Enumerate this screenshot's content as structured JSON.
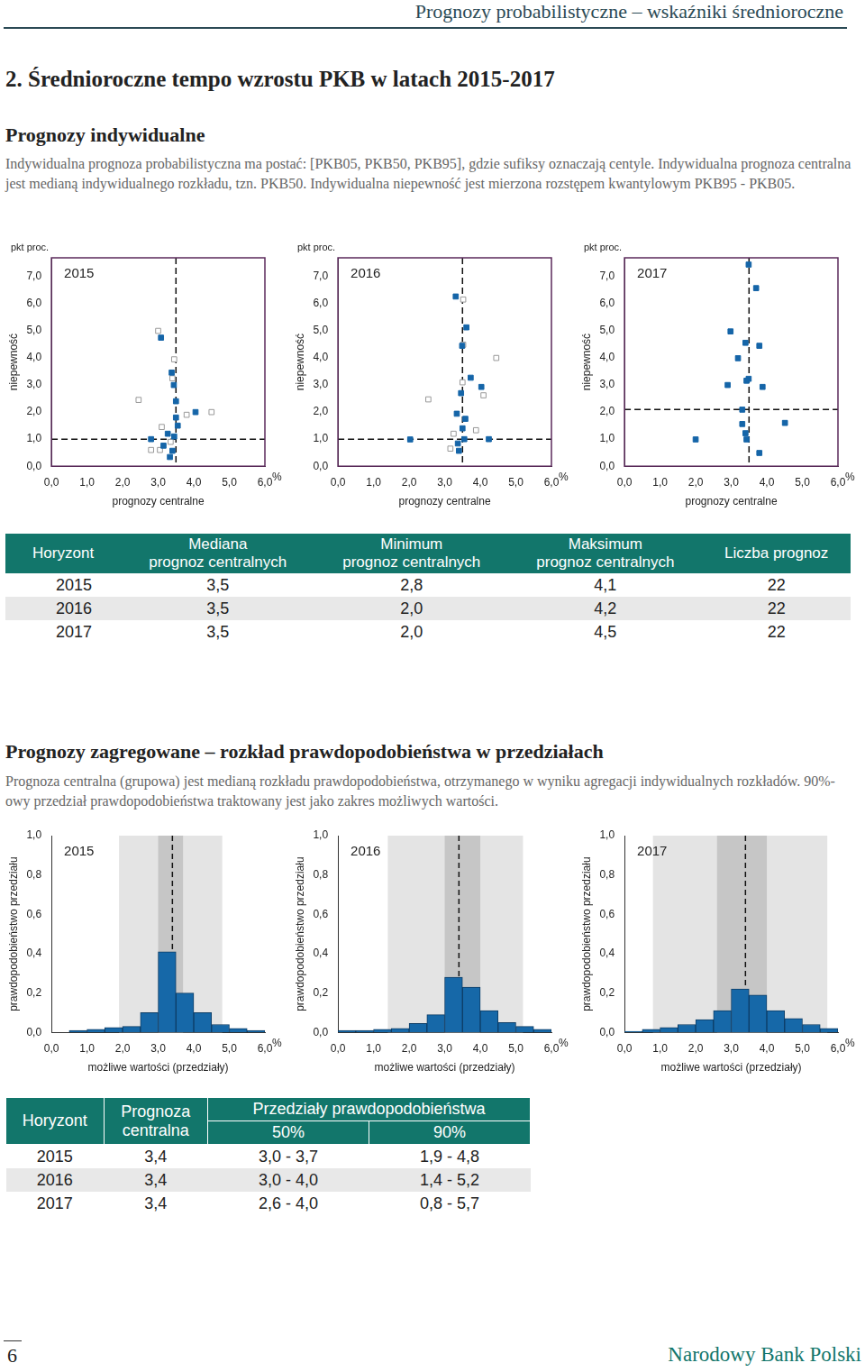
{
  "page": {
    "running_header": "Prognozy probabilistyczne – wskaźniki średnioroczne",
    "section_title": "2. Średnioroczne tempo wzrostu PKB w latach 2015-2017",
    "individual": {
      "heading": "Prognozy indywidualne",
      "text": "Indywidualna prognoza probabilistyczna ma postać: [PKB05, PKB50, PKB95], gdzie sufiksy oznaczają centyle. Indywidualna prognoza centralna jest medianą indywidualnego rozkładu, tzn. PKB50. Indywidualna niepewność jest mierzona rozstępem kwantylowym PKB95 - PKB05."
    },
    "table1": {
      "columns": [
        "Horyzont",
        "Mediana\nprognoz centralnych",
        "Minimum\nprognoz centralnych",
        "Maksimum\nprognoz centralnych",
        "Liczba prognoz"
      ],
      "rows": [
        [
          "2015",
          "3,5",
          "2,8",
          "4,1",
          "22"
        ],
        [
          "2016",
          "3,5",
          "2,0",
          "4,2",
          "22"
        ],
        [
          "2017",
          "3,5",
          "2,0",
          "4,5",
          "22"
        ]
      ]
    },
    "aggregate": {
      "heading": "Prognozy zagregowane – rozkład prawdopodobieństwa w przedziałach",
      "text": "Prognoza centralna (grupowa) jest medianą rozkładu prawdopodobieństwa, otrzymanego w wyniku agregacji indywidualnych rozkładów. 90%-owy przedział prawdopodobieństwa traktowany jest jako zakres możliwych wartości."
    },
    "table2": {
      "header_top": [
        "Horyzont",
        "Prognoza\ncentralna",
        "Przedziały prawdopodobieństwa"
      ],
      "header_sub": [
        "50%",
        "90%"
      ],
      "rows": [
        [
          "2015",
          "3,4",
          "3,0 - 3,7",
          "1,9 - 4,8"
        ],
        [
          "2016",
          "3,4",
          "3,0 - 4,0",
          "1,4 - 5,2"
        ],
        [
          "2017",
          "3,4",
          "2,6 - 4,0",
          "0,8 - 5,7"
        ]
      ]
    },
    "footer": {
      "page": "6",
      "publisher": "Narodowy Bank Polski"
    }
  },
  "chart_data": [
    {
      "type": "scatter",
      "title": "2015",
      "x_label": "prognozy centralne",
      "y_label": "niepewność",
      "x_unit": "%",
      "y_unit": "pkt proc.",
      "xlim": [
        0,
        6
      ],
      "ylim": [
        0,
        7.7
      ],
      "xticks": [
        {
          "value": 0,
          "label": "0,0"
        },
        {
          "value": 1,
          "label": "1,0"
        },
        {
          "value": 2,
          "label": "2,0"
        },
        {
          "value": 3,
          "label": "3,0"
        },
        {
          "value": 4,
          "label": "4,0"
        },
        {
          "value": 5,
          "label": "5,0"
        },
        {
          "value": 6,
          "label": "6,0"
        }
      ],
      "yticks": [
        {
          "value": 0,
          "label": "0,0"
        },
        {
          "value": 1,
          "label": "1,0"
        },
        {
          "value": 2,
          "label": "2,0"
        },
        {
          "value": 3,
          "label": "3,0"
        },
        {
          "value": 4,
          "label": "4,0"
        },
        {
          "value": 5,
          "label": "5,0"
        },
        {
          "value": 6,
          "label": "6,0"
        },
        {
          "value": 7,
          "label": "7,0"
        }
      ],
      "grid": false,
      "median_x": 3.5,
      "median_y": 1.0,
      "series": [
        {
          "color": "#1565a8",
          "marker": "square",
          "x": [
            3.08,
            3.38,
            3.44,
            3.5,
            3.5,
            4.05,
            2.8,
            3.15,
            3.4,
            3.55,
            3.27,
            3.45,
            3.33
          ],
          "values": [
            4.75,
            3.46,
            3.0,
            2.4,
            1.8,
            2.0,
            1.0,
            0.76,
            0.57,
            1.5,
            1.2,
            1.1,
            0.34
          ]
        },
        {
          "color": "#999999",
          "marker": "square_open",
          "x": [
            3.0,
            3.45,
            2.45,
            3.4,
            4.5,
            3.1,
            3.05,
            3.8,
            2.8,
            3.35
          ],
          "values": [
            5.0,
            3.95,
            2.45,
            3.25,
            2.0,
            1.45,
            0.6,
            1.9,
            0.6,
            0.9
          ]
        }
      ]
    },
    {
      "type": "scatter",
      "title": "2016",
      "x_label": "prognozy centralne",
      "y_label": "niepewność",
      "x_unit": "%",
      "y_unit": "pkt proc.",
      "xlim": [
        0,
        6
      ],
      "ylim": [
        0,
        7.7
      ],
      "xticks": [
        {
          "value": 0,
          "label": "0,0"
        },
        {
          "value": 1,
          "label": "1,0"
        },
        {
          "value": 2,
          "label": "2,0"
        },
        {
          "value": 3,
          "label": "3,0"
        },
        {
          "value": 4,
          "label": "4,0"
        },
        {
          "value": 5,
          "label": "5,0"
        },
        {
          "value": 6,
          "label": "6,0"
        }
      ],
      "yticks": [
        {
          "value": 0,
          "label": "0,0"
        },
        {
          "value": 1,
          "label": "1,0"
        },
        {
          "value": 2,
          "label": "2,0"
        },
        {
          "value": 3,
          "label": "3,0"
        },
        {
          "value": 4,
          "label": "4,0"
        },
        {
          "value": 5,
          "label": "5,0"
        },
        {
          "value": 6,
          "label": "6,0"
        },
        {
          "value": 7,
          "label": "7,0"
        }
      ],
      "grid": false,
      "median_x": 3.5,
      "median_y": 1.0,
      "series": [
        {
          "color": "#1565a8",
          "marker": "square",
          "x": [
            3.31,
            3.61,
            3.49,
            3.73,
            4.03,
            3.46,
            3.34,
            3.58,
            2.03,
            3.55,
            3.37,
            3.4,
            4.24,
            3.5
          ],
          "values": [
            6.27,
            5.13,
            4.45,
            3.27,
            2.93,
            2.7,
            1.94,
            1.75,
            0.99,
            1.0,
            0.84,
            0.57,
            1.0,
            1.4
          ]
        },
        {
          "color": "#999999",
          "marker": "square_open",
          "x": [
            3.52,
            3.52,
            4.45,
            2.54,
            4.09,
            3.5,
            3.88,
            3.25,
            3.16
          ],
          "values": [
            6.16,
            4.49,
            4.0,
            2.47,
            2.62,
            3.1,
            1.33,
            1.2,
            0.65
          ]
        }
      ]
    },
    {
      "type": "scatter",
      "title": "2017",
      "x_label": "prognozy centralne",
      "y_label": "niepewność",
      "x_unit": "%",
      "y_unit": "pkt proc.",
      "xlim": [
        0,
        6
      ],
      "ylim": [
        0,
        7.7
      ],
      "xticks": [
        {
          "value": 0,
          "label": "0,0"
        },
        {
          "value": 1,
          "label": "1,0"
        },
        {
          "value": 2,
          "label": "2,0"
        },
        {
          "value": 3,
          "label": "3,0"
        },
        {
          "value": 4,
          "label": "4,0"
        },
        {
          "value": 5,
          "label": "5,0"
        },
        {
          "value": 6,
          "label": "6,0"
        }
      ],
      "yticks": [
        {
          "value": 0,
          "label": "0,0"
        },
        {
          "value": 1,
          "label": "1,0"
        },
        {
          "value": 2,
          "label": "2,0"
        },
        {
          "value": 3,
          "label": "3,0"
        },
        {
          "value": 4,
          "label": "4,0"
        },
        {
          "value": 5,
          "label": "5,0"
        },
        {
          "value": 6,
          "label": "6,0"
        },
        {
          "value": 7,
          "label": "7,0"
        }
      ],
      "grid": false,
      "median_x": 3.5,
      "median_y": 2.1,
      "series": [
        {
          "color": "#1565a8",
          "marker": "square",
          "x": [
            3.49,
            3.7,
            2.98,
            3.79,
            3.19,
            3.4,
            3.49,
            2.9,
            3.43,
            3.88,
            3.31,
            3.31,
            4.51,
            2.0,
            3.43,
            3.79,
            3.4
          ],
          "values": [
            7.45,
            6.58,
            4.98,
            4.45,
            3.99,
            4.56,
            3.23,
            3.0,
            3.16,
            2.93,
            2.09,
            1.56,
            1.6,
            0.99,
            0.99,
            0.49,
            1.22
          ]
        }
      ]
    },
    {
      "type": "histogram",
      "title": "2015",
      "x_label": "możliwe wartości (przedziały)",
      "y_label": "prawdopodobieństwo przedziału",
      "x_unit": "%",
      "xlim": [
        0,
        6
      ],
      "ylim": [
        0,
        1
      ],
      "xticks": [
        {
          "value": 0,
          "label": "0,0"
        },
        {
          "value": 1,
          "label": "1,0"
        },
        {
          "value": 2,
          "label": "2,0"
        },
        {
          "value": 3,
          "label": "3,0"
        },
        {
          "value": 4,
          "label": "4,0"
        },
        {
          "value": 5,
          "label": "5,0"
        },
        {
          "value": 6,
          "label": "6,0"
        }
      ],
      "yticks": [
        {
          "value": 0,
          "label": "0,0"
        },
        {
          "value": 0.2,
          "label": "0,2"
        },
        {
          "value": 0.4,
          "label": "0,4"
        },
        {
          "value": 0.6,
          "label": "0,6"
        },
        {
          "value": 0.8,
          "label": "0,8"
        },
        {
          "value": 1,
          "label": "1,0"
        }
      ],
      "grid": false,
      "color": "#1668a8",
      "bins": [
        0,
        0.5,
        1,
        1.5,
        2,
        2.5,
        3,
        3.5,
        4,
        4.5,
        5,
        5.5,
        6
      ],
      "values": [
        0.0,
        0.01,
        0.015,
        0.025,
        0.03,
        0.1,
        0.41,
        0.2,
        0.1,
        0.04,
        0.02,
        0.01
      ],
      "central": 3.4,
      "interval_50": [
        3.0,
        3.7
      ],
      "interval_90": [
        1.9,
        4.8
      ]
    },
    {
      "type": "histogram",
      "title": "2016",
      "x_label": "możliwe wartości (przedziały)",
      "y_label": "prawdopodobieństwo przedziału",
      "x_unit": "%",
      "xlim": [
        0,
        6
      ],
      "ylim": [
        0,
        1
      ],
      "xticks": [
        {
          "value": 0,
          "label": "0,0"
        },
        {
          "value": 1,
          "label": "1,0"
        },
        {
          "value": 2,
          "label": "2,0"
        },
        {
          "value": 3,
          "label": "3,0"
        },
        {
          "value": 4,
          "label": "4,0"
        },
        {
          "value": 5,
          "label": "5,0"
        },
        {
          "value": 6,
          "label": "6,0"
        }
      ],
      "yticks": [
        {
          "value": 0,
          "label": "0,0"
        },
        {
          "value": 0.2,
          "label": "0,2"
        },
        {
          "value": 0.4,
          "label": "0,4"
        },
        {
          "value": 0.6,
          "label": "0,6"
        },
        {
          "value": 0.8,
          "label": "0,8"
        },
        {
          "value": 1,
          "label": "1,0"
        }
      ],
      "grid": false,
      "color": "#1668a8",
      "bins": [
        0,
        0.5,
        1,
        1.5,
        2,
        2.5,
        3,
        3.5,
        4,
        4.5,
        5,
        5.5,
        6
      ],
      "values": [
        0.01,
        0.01,
        0.015,
        0.02,
        0.045,
        0.09,
        0.28,
        0.23,
        0.11,
        0.05,
        0.03,
        0.015
      ],
      "central": 3.4,
      "interval_50": [
        3.0,
        4.0
      ],
      "interval_90": [
        1.4,
        5.2
      ]
    },
    {
      "type": "histogram",
      "title": "2017",
      "x_label": "możliwe wartości (przedziały)",
      "y_label": "prawdopodobieństwo przedziału",
      "x_unit": "%",
      "xlim": [
        0,
        6
      ],
      "ylim": [
        0,
        1
      ],
      "xticks": [
        {
          "value": 0,
          "label": "0,0"
        },
        {
          "value": 1,
          "label": "1,0"
        },
        {
          "value": 2,
          "label": "2,0"
        },
        {
          "value": 3,
          "label": "3,0"
        },
        {
          "value": 4,
          "label": "4,0"
        },
        {
          "value": 5,
          "label": "5,0"
        },
        {
          "value": 6,
          "label": "6,0"
        }
      ],
      "yticks": [
        {
          "value": 0,
          "label": "0,0"
        },
        {
          "value": 0.2,
          "label": "0,2"
        },
        {
          "value": 0.4,
          "label": "0,4"
        },
        {
          "value": 0.6,
          "label": "0,6"
        },
        {
          "value": 0.8,
          "label": "0,8"
        },
        {
          "value": 1,
          "label": "1,0"
        }
      ],
      "grid": false,
      "color": "#1668a8",
      "bins": [
        0,
        0.5,
        1,
        1.5,
        2,
        2.5,
        3,
        3.5,
        4,
        4.5,
        5,
        5.5,
        6
      ],
      "values": [
        0.005,
        0.015,
        0.025,
        0.04,
        0.065,
        0.11,
        0.22,
        0.19,
        0.11,
        0.07,
        0.04,
        0.02
      ],
      "central": 3.4,
      "interval_50": [
        2.6,
        4.0
      ],
      "interval_90": [
        0.8,
        5.7
      ]
    }
  ]
}
